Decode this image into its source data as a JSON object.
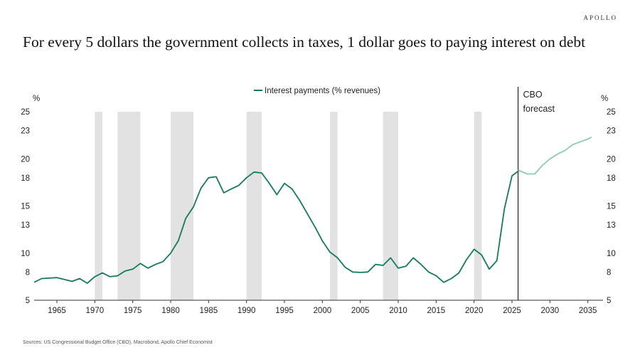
{
  "header": {
    "brand": "APOLLO",
    "title": "For every 5 dollars the government collects in taxes, 1 dollar goes to paying interest on debt"
  },
  "footer": {
    "source": "Sources: US Congressional Budget Office (CBO), Macrobond, Apollo Chief Economist"
  },
  "chart_data": {
    "type": "line",
    "title": "For every 5 dollars the government collects in taxes, 1 dollar goes to paying interest on debt",
    "ylabel": "%",
    "ylabel_right": "%",
    "ylim": [
      5,
      25
    ],
    "xlim": [
      1962,
      2037
    ],
    "yticks": [
      5,
      8,
      10,
      13,
      15,
      18,
      20,
      23,
      25
    ],
    "xticks": [
      1965,
      1970,
      1975,
      1980,
      1985,
      1990,
      1995,
      2000,
      2005,
      2010,
      2015,
      2020,
      2025,
      2030,
      2035
    ],
    "legend": {
      "label": "Interest payments (% revenues)",
      "position": "top-center"
    },
    "grid": false,
    "colors": {
      "historical": "#127a5f",
      "forecast": "#8ccbb2",
      "recession": "#e2e2e2",
      "divider": "#222222"
    },
    "recessions": [
      [
        1970,
        1971
      ],
      [
        1973,
        1976
      ],
      [
        1980,
        1983
      ],
      [
        1990,
        1992
      ],
      [
        2001,
        2002
      ],
      [
        2008,
        2010
      ],
      [
        2020,
        2021
      ]
    ],
    "annotation": {
      "x": 2025.8,
      "lines": [
        "CBO",
        "forecast"
      ]
    },
    "series": [
      {
        "name": "Interest payments (% revenues)",
        "segment": "historical",
        "x": [
          1962,
          1963,
          1964,
          1965,
          1966,
          1967,
          1968,
          1969,
          1970,
          1971,
          1972,
          1973,
          1974,
          1975,
          1976,
          1977,
          1978,
          1979,
          1980,
          1981,
          1982,
          1983,
          1984,
          1985,
          1986,
          1987,
          1988,
          1989,
          1990,
          1991,
          1992,
          1993,
          1994,
          1995,
          1996,
          1997,
          1998,
          1999,
          2000,
          2001,
          2002,
          2003,
          2004,
          2005,
          2006,
          2007,
          2008,
          2009,
          2010,
          2011,
          2012,
          2013,
          2014,
          2015,
          2016,
          2017,
          2018,
          2019,
          2020,
          2021,
          2022,
          2023,
          2024,
          2025,
          2026
        ],
        "values": [
          6.9,
          7.3,
          7.35,
          7.4,
          7.2,
          7.0,
          7.3,
          6.8,
          7.5,
          7.9,
          7.5,
          7.6,
          8.1,
          8.3,
          8.9,
          8.4,
          8.8,
          9.1,
          10.0,
          11.3,
          13.7,
          14.9,
          16.9,
          18.0,
          18.1,
          16.4,
          16.8,
          17.2,
          18.0,
          18.6,
          18.5,
          17.4,
          16.2,
          17.4,
          16.8,
          15.6,
          14.2,
          12.8,
          11.3,
          10.1,
          9.5,
          8.5,
          8.0,
          7.95,
          8.0,
          8.8,
          8.7,
          9.5,
          8.4,
          8.6,
          9.5,
          8.8,
          8.0,
          7.6,
          6.9,
          7.3,
          7.9,
          9.3,
          10.4,
          9.8,
          8.3,
          9.2,
          14.7,
          18.2,
          18.8
        ]
      },
      {
        "name": "Interest payments (% revenues)",
        "segment": "forecast",
        "x": [
          2025.8,
          2027,
          2028,
          2029,
          2030,
          2031,
          2032,
          2033,
          2034,
          2035,
          2035.5
        ],
        "values": [
          18.8,
          18.4,
          18.4,
          19.3,
          20.0,
          20.5,
          20.9,
          21.5,
          21.8,
          22.1,
          22.3
        ]
      }
    ]
  }
}
